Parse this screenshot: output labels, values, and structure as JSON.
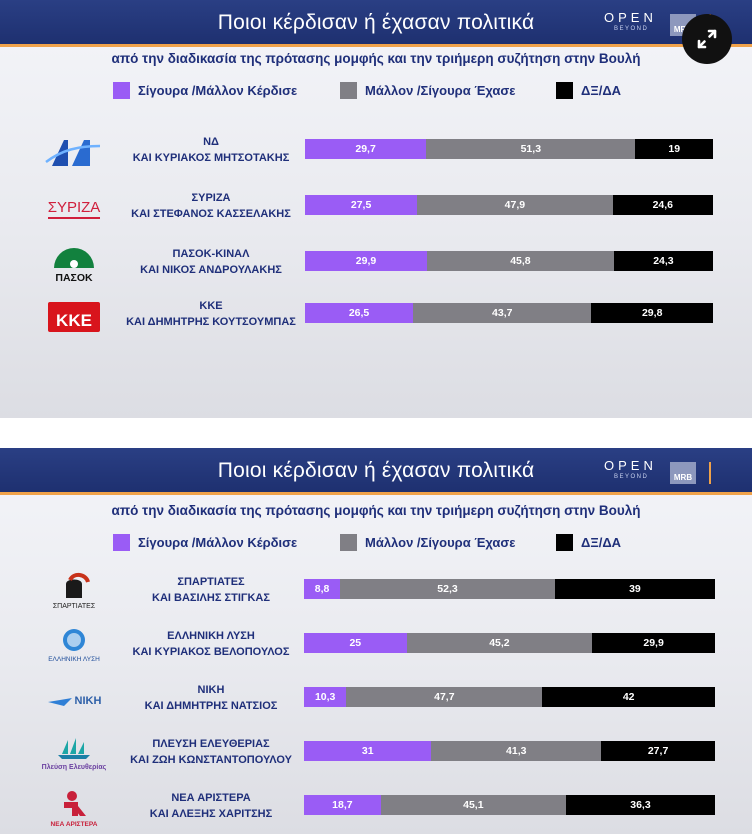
{
  "colors": {
    "won": "#9a5cf5",
    "lost": "#807f85",
    "dk": "#000000",
    "header_bg": "#24387a",
    "accent": "#f0a24a",
    "text": "#1f2f7a"
  },
  "panels": [
    {
      "title": "Ποιοι κέρδισαν ή έχασαν πολιτικά",
      "subtitle": "από την διαδικασία της πρότασης μομφής και την τριήμερη συζήτηση στην Βουλή",
      "brand": {
        "open": "OPEN",
        "beyond": "BEYOND",
        "mrb": "MRB"
      },
      "legend": {
        "won": "Σίγουρα /Μάλλον Κέρδισε",
        "lost": "Μάλλον /Σίγουρα Έχασε",
        "dk": "ΔΞ/ΔΑ"
      },
      "rows": [
        {
          "logo": "nd-logo",
          "logo_text": "",
          "name1": "ΝΔ",
          "name2": "ΚΑΙ ΚΥΡΙΑΚΟΣ ΜΗΤΣΟΤΑΚΗΣ",
          "won": "29,7",
          "lost": "51,3",
          "dk": "19"
        },
        {
          "logo": "syriza-logo",
          "logo_text": "ΣΥΡΙΖΑ",
          "name1": "ΣΥΡΙΖΑ",
          "name2": "ΚΑΙ ΣΤΕΦΑΝΟΣ ΚΑΣΣΕΛΑΚΗΣ",
          "won": "27,5",
          "lost": "47,9",
          "dk": "24,6"
        },
        {
          "logo": "pasok-logo",
          "logo_text": "ΠΑΣΟΚ",
          "name1": "ΠΑΣΟΚ-ΚΙΝΑΛ",
          "name2": "ΚΑΙ ΝΙΚΟΣ ΑΝΔΡΟΥΛΑΚΗΣ",
          "won": "29,9",
          "lost": "45,8",
          "dk": "24,3"
        },
        {
          "logo": "kke-logo",
          "logo_text": "ΚΚΕ",
          "name1": "ΚΚΕ",
          "name2": "ΚΑΙ ΔΗΜΗΤΡΗΣ ΚΟΥΤΣΟΥΜΠΑΣ",
          "won": "26,5",
          "lost": "43,7",
          "dk": "29,8"
        }
      ]
    },
    {
      "title": "Ποιοι κέρδισαν ή έχασαν πολιτικά",
      "subtitle": "από την διαδικασία της πρότασης μομφής και την τριήμερη συζήτηση στην Βουλή",
      "brand": {
        "open": "OPEN",
        "beyond": "BEYOND",
        "mrb": "MRB"
      },
      "legend": {
        "won": "Σίγουρα /Μάλλον Κέρδισε",
        "lost": "Μάλλον /Σίγουρα Έχασε",
        "dk": "ΔΞ/ΔΑ"
      },
      "rows": [
        {
          "logo": "spartiates-logo",
          "logo_text": "ΣΠΑΡΤΙΑΤΕΣ",
          "name1": "ΣΠΑΡΤΙΑΤΕΣ",
          "name2": "ΚΑΙ ΒΑΣΙΛΗΣ ΣΤΙΓΚΑΣ",
          "won": "8,8",
          "lost": "52,3",
          "dk": "39"
        },
        {
          "logo": "elliniki-lysi-logo",
          "logo_text": "ΕΛΛΗΝΙΚΗ ΛΥΣΗ",
          "name1": "ΕΛΛΗΝΙΚΗ ΛΥΣΗ",
          "name2": "ΚΑΙ ΚΥΡΙΑΚΟΣ ΒΕΛΟΠΟΥΛΟΣ",
          "won": "25",
          "lost": "45,2",
          "dk": "29,9"
        },
        {
          "logo": "niki-logo",
          "logo_text": "ΝΙΚΗ",
          "name1": "ΝΙΚΗ",
          "name2": "ΚΑΙ ΔΗΜΗΤΡΗΣ ΝΑΤΣΙΟΣ",
          "won": "10,3",
          "lost": "47,7",
          "dk": "42"
        },
        {
          "logo": "plefsi-logo",
          "logo_text": "Πλεύση Ελευθερίας",
          "name1": "ΠΛΕΥΣΗ ΕΛΕΥΘΕΡΙΑΣ",
          "name2": "ΚΑΙ ΖΩΗ ΚΩΝΣΤΑΝΤΟΠΟΥΛΟΥ",
          "won": "31",
          "lost": "41,3",
          "dk": "27,7"
        },
        {
          "logo": "nea-aristera-logo",
          "logo_text": "ΝΕΑ ΑΡΙΣΤΕΡΑ",
          "name1": "ΝΕΑ ΑΡΙΣΤΕΡΑ",
          "name2": "ΚΑΙ ΑΛΕΞΗΣ ΧΑΡΙΤΣΗΣ",
          "won": "18,7",
          "lost": "45,1",
          "dk": "36,3"
        }
      ]
    }
  ],
  "chart_data": [
    {
      "type": "bar",
      "stacked": true,
      "orientation": "horizontal",
      "title": "Ποιοι κέρδισαν ή έχασαν πολιτικά",
      "subtitle": "από την διαδικασία της πρότασης μομφής και την τριήμερη συζήτηση στην Βουλή",
      "categories": [
        "ΝΔ ΚΑΙ ΚΥΡΙΑΚΟΣ ΜΗΤΣΟΤΑΚΗΣ",
        "ΣΥΡΙΖΑ ΚΑΙ ΣΤΕΦΑΝΟΣ ΚΑΣΣΕΛΑΚΗΣ",
        "ΠΑΣΟΚ-ΚΙΝΑΛ ΚΑΙ ΝΙΚΟΣ ΑΝΔΡΟΥΛΑΚΗΣ",
        "ΚΚΕ ΚΑΙ ΔΗΜΗΤΡΗΣ ΚΟΥΤΣΟΥΜΠΑΣ"
      ],
      "series": [
        {
          "name": "Σίγουρα /Μάλλον Κέρδισε",
          "values": [
            29.7,
            27.5,
            29.9,
            26.5
          ]
        },
        {
          "name": "Μάλλον /Σίγουρα Έχασε",
          "values": [
            51.3,
            47.9,
            45.8,
            43.7
          ]
        },
        {
          "name": "ΔΞ/ΔΑ",
          "values": [
            19,
            24.6,
            24.3,
            29.8
          ]
        }
      ],
      "xlim": [
        0,
        100
      ],
      "legend": "top"
    },
    {
      "type": "bar",
      "stacked": true,
      "orientation": "horizontal",
      "title": "Ποιοι κέρδισαν ή έχασαν πολιτικά",
      "subtitle": "από την διαδικασία της πρότασης μομφής και την τριήμερη συζήτηση στην Βουλή",
      "categories": [
        "ΣΠΑΡΤΙΑΤΕΣ ΚΑΙ ΒΑΣΙΛΗΣ ΣΤΙΓΚΑΣ",
        "ΕΛΛΗΝΙΚΗ ΛΥΣΗ ΚΑΙ ΚΥΡΙΑΚΟΣ ΒΕΛΟΠΟΥΛΟΣ",
        "ΝΙΚΗ ΚΑΙ ΔΗΜΗΤΡΗΣ ΝΑΤΣΙΟΣ",
        "ΠΛΕΥΣΗ ΕΛΕΥΘΕΡΙΑΣ ΚΑΙ ΖΩΗ ΚΩΝΣΤΑΝΤΟΠΟΥΛΟΥ",
        "ΝΕΑ ΑΡΙΣΤΕΡΑ ΚΑΙ ΑΛΕΞΗΣ ΧΑΡΙΤΣΗΣ"
      ],
      "series": [
        {
          "name": "Σίγουρα /Μάλλον Κέρδισε",
          "values": [
            8.8,
            25,
            10.3,
            31,
            18.7
          ]
        },
        {
          "name": "Μάλλον /Σίγουρα Έχασε",
          "values": [
            52.3,
            45.2,
            47.7,
            41.3,
            45.1
          ]
        },
        {
          "name": "ΔΞ/ΔΑ",
          "values": [
            39,
            29.9,
            42,
            27.7,
            36.3
          ]
        }
      ],
      "xlim": [
        0,
        100
      ],
      "legend": "top"
    }
  ]
}
